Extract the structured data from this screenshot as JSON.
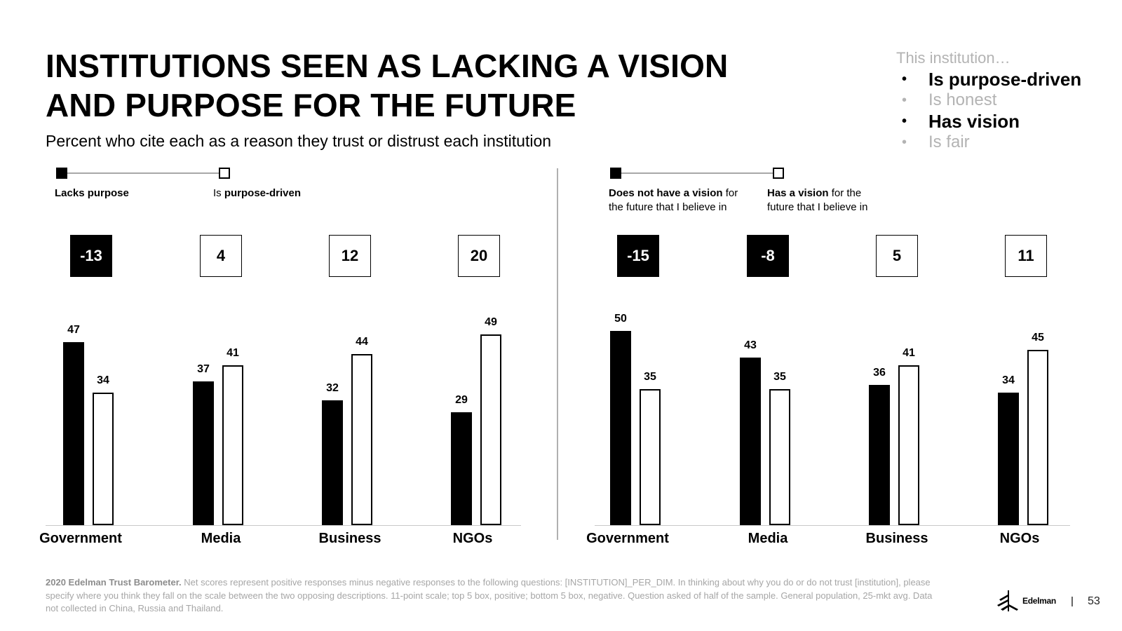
{
  "title_line1": "INSTITUTIONS SEEN AS LACKING A VISION",
  "title_line2": "AND PURPOSE FOR THE FUTURE",
  "subtitle": "Percent who cite each as a reason they trust or distrust each institution",
  "dimensions": {
    "heading": "This institution…",
    "items": [
      {
        "label": "Is purpose-driven",
        "active": true
      },
      {
        "label": "Is honest",
        "active": false
      },
      {
        "label": "Has vision",
        "active": true
      },
      {
        "label": "Is fair",
        "active": false
      }
    ]
  },
  "colors": {
    "negative": "#000000",
    "positive": "#ffffff",
    "muted": "#b3b3b3"
  },
  "chart_data": [
    {
      "type": "bar",
      "categories": [
        "Government",
        "Media",
        "Business",
        "NGOs"
      ],
      "legend": {
        "negative": {
          "bold": "Lacks purpose",
          "rest": "",
          "rest2": ""
        },
        "positive": {
          "prefix": "Is ",
          "bold": "purpose-driven",
          "rest": "",
          "rest2": ""
        }
      },
      "series": [
        {
          "name": "Lacks purpose",
          "values": [
            47,
            37,
            32,
            29
          ]
        },
        {
          "name": "Is purpose-driven",
          "values": [
            34,
            41,
            44,
            49
          ]
        }
      ],
      "net_scores": [
        -13,
        4,
        12,
        20
      ],
      "ylim": [
        0,
        60
      ]
    },
    {
      "type": "bar",
      "categories": [
        "Government",
        "Media",
        "Business",
        "NGOs"
      ],
      "legend": {
        "negative": {
          "bold": "Does not have a vision",
          "rest": " for",
          "rest2": "the future that I believe in"
        },
        "positive": {
          "prefix": "",
          "bold": "Has a vision",
          "rest": " for the",
          "rest2": "future that I believe in"
        }
      },
      "series": [
        {
          "name": "Does not have a vision for the future that I believe in",
          "values": [
            50,
            43,
            36,
            34
          ]
        },
        {
          "name": "Has a vision for the future that I believe in",
          "values": [
            35,
            35,
            41,
            45
          ]
        }
      ],
      "net_scores": [
        -15,
        -8,
        5,
        11
      ],
      "ylim": [
        0,
        60
      ]
    }
  ],
  "footnote": {
    "source": "2020 Edelman Trust Barometer.",
    "text": " Net scores represent positive responses minus negative responses to the following questions: [INSTITUTION]_PER_DIM. In thinking about why you do or do not trust [institution], please specify where you think they fall on the scale between the two opposing descriptions. 11-point scale; top 5 box, positive; bottom 5 box, negative. Question asked of half of the sample. General population, 25-mkt avg. Data not collected in China, Russia and Thailand."
  },
  "brand": "Edelman",
  "page_number": "53"
}
